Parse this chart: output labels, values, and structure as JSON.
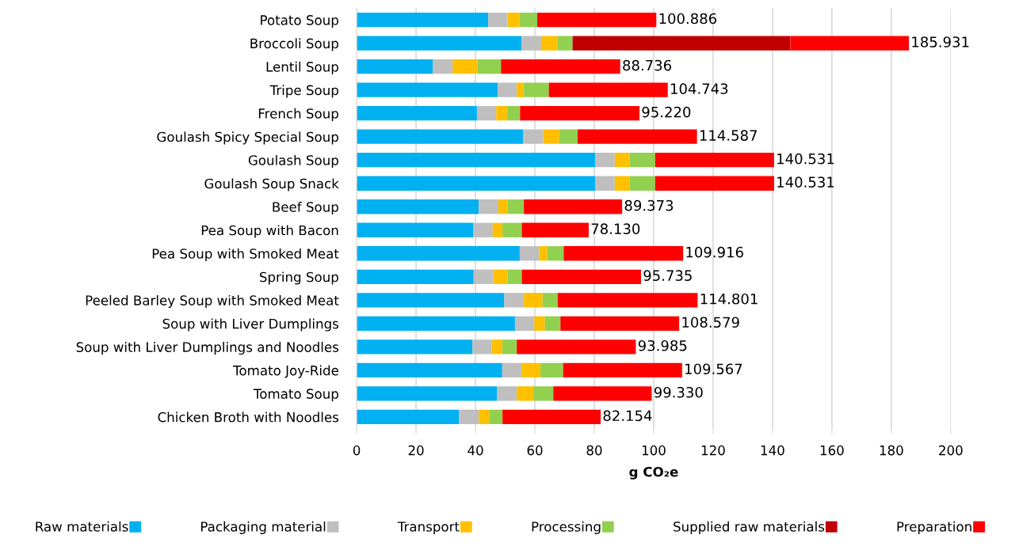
{
  "chart_data": {
    "type": "bar",
    "orientation": "horizontal",
    "stacked": true,
    "categories": [
      "Potato Soup",
      "Broccoli Soup",
      "Lentil Soup",
      "Tripe Soup",
      "French Soup",
      "Goulash Spicy Special Soup",
      "Goulash Soup",
      "Goulash Soup Snack",
      "Beef Soup",
      "Pea Soup with Bacon",
      "Pea Soup with Smoked Meat",
      "Spring Soup",
      "Peeled Barley Soup with Smoked Meat",
      "Soup with Liver Dumplings",
      "Soup with Liver Dumplings and Noodles",
      "Tomato Joy-Ride",
      "Tomato Soup",
      "Chicken Broth with Noodles"
    ],
    "series": [
      {
        "name": "Raw materials",
        "color": "#00b0f0",
        "values": [
          44.3,
          55.5,
          25.6,
          47.5,
          40.5,
          56.1,
          80.3,
          80.3,
          41.1,
          39.2,
          54.9,
          39.4,
          49.7,
          53.3,
          39.0,
          49.0,
          47.3,
          34.5
        ]
      },
      {
        "name": "Packaging material",
        "color": "#bfbfbf",
        "values": [
          6.5,
          6.6,
          6.7,
          6.4,
          6.5,
          6.7,
          6.6,
          6.6,
          6.6,
          6.6,
          6.5,
          6.6,
          6.6,
          6.5,
          6.5,
          6.5,
          6.6,
          6.6
        ]
      },
      {
        "name": "Transport",
        "color": "#ffc000",
        "values": [
          4.0,
          5.6,
          8.4,
          2.4,
          3.7,
          5.4,
          5.0,
          5.0,
          3.2,
          3.3,
          2.8,
          4.8,
          6.3,
          3.6,
          3.6,
          6.4,
          5.6,
          3.5
        ]
      },
      {
        "name": "Processing",
        "color": "#92d050",
        "values": [
          6.0,
          5.0,
          7.9,
          8.4,
          4.3,
          6.2,
          8.6,
          8.6,
          5.4,
          6.5,
          5.5,
          4.8,
          5.1,
          5.2,
          4.8,
          7.6,
          6.7,
          4.5
        ]
      },
      {
        "name": "Supplied raw materials",
        "color": "#c00000",
        "values": [
          null,
          73.3,
          null,
          null,
          null,
          null,
          null,
          null,
          null,
          null,
          null,
          null,
          null,
          null,
          null,
          null,
          null,
          null
        ]
      },
      {
        "name": "Preparation",
        "color": "#ff0000",
        "values": [
          40.086,
          39.931,
          40.136,
          40.043,
          40.22,
          40.187,
          40.031,
          40.031,
          33.073,
          22.53,
          40.216,
          40.135,
          47.101,
          39.979,
          40.085,
          40.067,
          33.13,
          33.054
        ]
      }
    ],
    "totals": [
      "100.886",
      "185.931",
      "88.736",
      "104.743",
      "95.220",
      "114.587",
      "140.531",
      "140.531",
      "89.373",
      "78.130",
      "109.916",
      "95.735",
      "114.801",
      "108.579",
      "93.985",
      "109.567",
      "99.330",
      "82.154"
    ],
    "xlabel": "g CO₂e",
    "xlim": [
      0,
      200
    ],
    "xticks": [
      0,
      20,
      40,
      60,
      80,
      100,
      120,
      140,
      160,
      180,
      200
    ],
    "grid": "x",
    "legend": "bottom"
  }
}
